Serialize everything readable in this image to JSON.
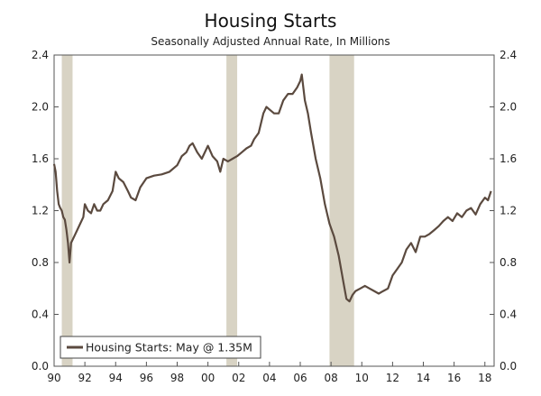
{
  "chart_data": {
    "type": "line",
    "title": "Housing Starts",
    "subtitle": "Seasonally Adjusted Annual Rate, In Millions",
    "xlabel": "",
    "ylabel": "",
    "xlim": [
      1990,
      2018.6
    ],
    "ylim": [
      0,
      2.4
    ],
    "y_ticks": [
      0.0,
      0.4,
      0.8,
      1.2,
      1.6,
      2.0,
      2.4
    ],
    "y_tick_labels": [
      "0.0",
      "0.4",
      "0.8",
      "1.2",
      "1.6",
      "2.0",
      "2.4"
    ],
    "x_tick_values": [
      1990,
      1992,
      1994,
      1996,
      1998,
      2000,
      2002,
      2004,
      2006,
      2008,
      2010,
      2012,
      2014,
      2016,
      2018
    ],
    "x_tick_labels": [
      "90",
      "92",
      "94",
      "96",
      "98",
      "00",
      "02",
      "04",
      "06",
      "08",
      "10",
      "12",
      "14",
      "16",
      "18"
    ],
    "grid": false,
    "recessions": [
      {
        "start": 1990.5,
        "end": 1991.2
      },
      {
        "start": 2001.2,
        "end": 2001.9
      },
      {
        "start": 2007.9,
        "end": 2009.5
      }
    ],
    "series": [
      {
        "name": "Housing Starts",
        "color": "#5b4a3f",
        "x": [
          1990.0,
          1990.1,
          1990.2,
          1990.3,
          1990.4,
          1990.5,
          1990.6,
          1990.7,
          1990.8,
          1990.9,
          1991.0,
          1991.1,
          1991.3,
          1991.5,
          1991.7,
          1991.9,
          1992.0,
          1992.2,
          1992.4,
          1992.6,
          1992.8,
          1993.0,
          1993.2,
          1993.5,
          1993.8,
          1994.0,
          1994.2,
          1994.5,
          1994.8,
          1995.0,
          1995.3,
          1995.6,
          1996.0,
          1996.5,
          1997.0,
          1997.5,
          1998.0,
          1998.3,
          1998.6,
          1998.8,
          1999.0,
          1999.3,
          1999.6,
          2000.0,
          2000.3,
          2000.6,
          2000.8,
          2001.0,
          2001.3,
          2001.6,
          2001.9,
          2002.2,
          2002.5,
          2002.8,
          2003.0,
          2003.3,
          2003.6,
          2003.8,
          2004.0,
          2004.3,
          2004.6,
          2004.9,
          2005.2,
          2005.5,
          2005.8,
          2006.0,
          2006.1,
          2006.3,
          2006.5,
          2006.7,
          2007.0,
          2007.3,
          2007.6,
          2007.9,
          2008.2,
          2008.5,
          2008.8,
          2009.0,
          2009.2,
          2009.4,
          2009.6,
          2009.9,
          2010.2,
          2010.5,
          2010.8,
          2011.1,
          2011.4,
          2011.7,
          2012.0,
          2012.3,
          2012.6,
          2012.9,
          2013.2,
          2013.5,
          2013.8,
          2014.1,
          2014.4,
          2014.7,
          2015.0,
          2015.3,
          2015.6,
          2015.9,
          2016.2,
          2016.5,
          2016.8,
          2017.1,
          2017.4,
          2017.7,
          2018.0,
          2018.2,
          2018.4
        ],
        "values": [
          1.56,
          1.5,
          1.35,
          1.25,
          1.22,
          1.2,
          1.15,
          1.13,
          1.05,
          0.95,
          0.8,
          0.95,
          1.0,
          1.05,
          1.1,
          1.15,
          1.25,
          1.2,
          1.18,
          1.25,
          1.2,
          1.2,
          1.25,
          1.28,
          1.35,
          1.5,
          1.45,
          1.42,
          1.35,
          1.3,
          1.28,
          1.38,
          1.45,
          1.47,
          1.48,
          1.5,
          1.55,
          1.62,
          1.65,
          1.7,
          1.72,
          1.65,
          1.6,
          1.7,
          1.62,
          1.58,
          1.5,
          1.6,
          1.58,
          1.6,
          1.62,
          1.65,
          1.68,
          1.7,
          1.75,
          1.8,
          1.95,
          2.0,
          1.98,
          1.95,
          1.95,
          2.05,
          2.1,
          2.1,
          2.15,
          2.2,
          2.25,
          2.05,
          1.95,
          1.8,
          1.6,
          1.45,
          1.25,
          1.1,
          1.0,
          0.85,
          0.65,
          0.52,
          0.5,
          0.55,
          0.58,
          0.6,
          0.62,
          0.6,
          0.58,
          0.56,
          0.58,
          0.6,
          0.7,
          0.75,
          0.8,
          0.9,
          0.95,
          0.88,
          1.0,
          1.0,
          1.02,
          1.05,
          1.08,
          1.12,
          1.15,
          1.12,
          1.18,
          1.15,
          1.2,
          1.22,
          1.17,
          1.25,
          1.3,
          1.28,
          1.35
        ]
      }
    ],
    "legend": {
      "label": "Housing Starts: May @ 1.35M",
      "placement": "bottom-left"
    }
  }
}
